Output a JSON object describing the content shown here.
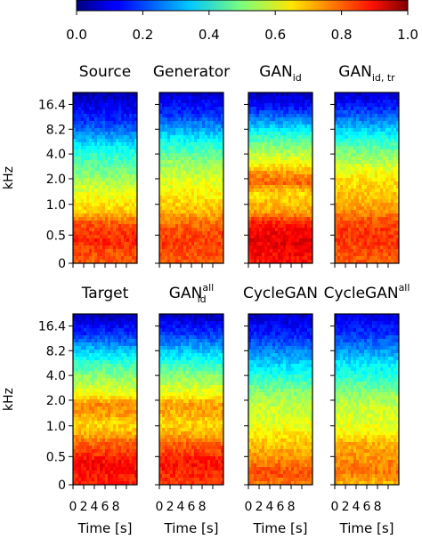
{
  "chart_data": {
    "type": "heatmap",
    "colorbar": {
      "ticks": [
        "0.0",
        "0.2",
        "0.4",
        "0.6",
        "0.8",
        "1.0"
      ],
      "range": [
        0.0,
        1.0
      ],
      "colormap": "jet"
    },
    "y_axis": {
      "label": "kHz",
      "ticks": [
        "16.4",
        "8.2",
        "4.0",
        "2.0",
        "1.0",
        "0.5",
        "0"
      ]
    },
    "x_axis": {
      "label": "Time [s]",
      "ticks": [
        "0",
        "2",
        "4",
        "6",
        "8"
      ]
    },
    "panels": [
      {
        "title": "Source",
        "sub": "",
        "sup": "",
        "profile": [
          0.05,
          0.1,
          0.14,
          0.19,
          0.26,
          0.34,
          0.41,
          0.45,
          0.5,
          0.55,
          0.6,
          0.64,
          0.68,
          0.78,
          0.82,
          0.84,
          0.8,
          0.79
        ]
      },
      {
        "title": "Generator",
        "sub": "",
        "sup": "",
        "profile": [
          0.08,
          0.13,
          0.17,
          0.24,
          0.32,
          0.4,
          0.46,
          0.52,
          0.56,
          0.6,
          0.63,
          0.66,
          0.7,
          0.76,
          0.8,
          0.82,
          0.8,
          0.79
        ]
      },
      {
        "title": "GAN",
        "sub": "id",
        "sup": "",
        "profile": [
          0.06,
          0.12,
          0.2,
          0.3,
          0.4,
          0.48,
          0.55,
          0.62,
          0.72,
          0.78,
          0.66,
          0.68,
          0.72,
          0.84,
          0.88,
          0.9,
          0.88,
          0.86
        ]
      },
      {
        "title": "GAN",
        "sub": "id, tr",
        "sup": "",
        "profile": [
          0.08,
          0.14,
          0.2,
          0.28,
          0.36,
          0.44,
          0.5,
          0.56,
          0.62,
          0.66,
          0.68,
          0.7,
          0.74,
          0.8,
          0.82,
          0.82,
          0.8,
          0.78
        ]
      },
      {
        "title": "Target",
        "sub": "",
        "sup": "",
        "profile": [
          0.05,
          0.12,
          0.18,
          0.27,
          0.36,
          0.44,
          0.5,
          0.56,
          0.62,
          0.74,
          0.72,
          0.66,
          0.7,
          0.78,
          0.82,
          0.88,
          0.86,
          0.84
        ]
      },
      {
        "title": "GAN",
        "sub": "id",
        "sup": "all",
        "profile": [
          0.06,
          0.13,
          0.19,
          0.27,
          0.35,
          0.43,
          0.5,
          0.56,
          0.62,
          0.72,
          0.7,
          0.66,
          0.7,
          0.78,
          0.82,
          0.86,
          0.84,
          0.83
        ]
      },
      {
        "title": "CycleGAN",
        "sub": "",
        "sup": "",
        "profile": [
          0.08,
          0.12,
          0.16,
          0.22,
          0.28,
          0.34,
          0.4,
          0.46,
          0.52,
          0.56,
          0.58,
          0.6,
          0.64,
          0.68,
          0.72,
          0.76,
          0.8,
          0.76
        ]
      },
      {
        "title": "CycleGAN",
        "sub": "",
        "sup": "all",
        "profile": [
          0.1,
          0.14,
          0.18,
          0.24,
          0.3,
          0.36,
          0.4,
          0.46,
          0.52,
          0.56,
          0.58,
          0.6,
          0.64,
          0.7,
          0.72,
          0.74,
          0.76,
          0.7
        ]
      }
    ]
  }
}
